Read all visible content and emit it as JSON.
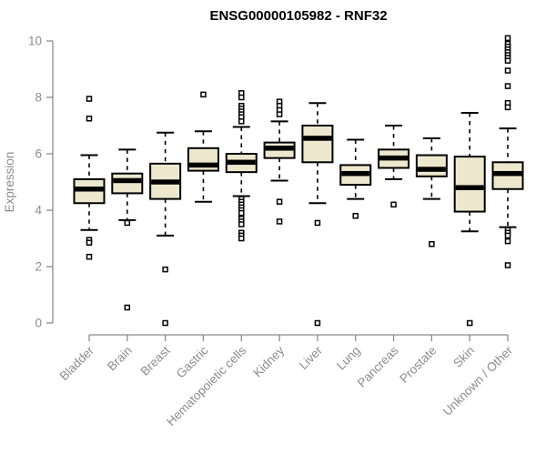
{
  "chart_data": {
    "type": "boxplot",
    "title": "ENSG00000105982 - RNF32",
    "ylabel": "Expression",
    "xlabel": "",
    "ylim": [
      0,
      10
    ],
    "yticks": [
      0,
      2,
      4,
      6,
      8,
      10
    ],
    "grid": false,
    "legend": false,
    "categories": [
      "Bladder",
      "Brain",
      "Breast",
      "Gastric",
      "Hematopoietic cells",
      "Kidney",
      "Liver",
      "Lung",
      "Pancreas",
      "Prostate",
      "Skin",
      "Unknown / Other"
    ],
    "series": [
      {
        "category": "Bladder",
        "whisker_low": 3.3,
        "q1": 4.25,
        "median": 4.75,
        "q3": 5.1,
        "whisker_high": 5.95,
        "outliers": [
          7.95,
          7.25,
          2.95,
          2.85,
          2.35
        ]
      },
      {
        "category": "Brain",
        "whisker_low": 3.65,
        "q1": 4.6,
        "median": 5.05,
        "q3": 5.3,
        "whisker_high": 6.15,
        "outliers": [
          3.55,
          0.55
        ]
      },
      {
        "category": "Breast",
        "whisker_low": 3.1,
        "q1": 4.4,
        "median": 5.0,
        "q3": 5.65,
        "whisker_high": 6.75,
        "outliers": [
          1.9,
          0.0
        ]
      },
      {
        "category": "Gastric",
        "whisker_low": 4.3,
        "q1": 5.4,
        "median": 5.6,
        "q3": 6.2,
        "whisker_high": 6.8,
        "outliers": [
          8.1
        ]
      },
      {
        "category": "Hematopoietic cells",
        "whisker_low": 4.5,
        "q1": 5.35,
        "median": 5.7,
        "q3": 6.0,
        "whisker_high": 6.95,
        "outliers": [
          8.15,
          8.0,
          7.7,
          7.6,
          7.5,
          7.4,
          7.3,
          7.15,
          4.4,
          4.3,
          4.2,
          4.1,
          4.0,
          3.9,
          3.7,
          3.6,
          3.5,
          3.2,
          3.1,
          3.0
        ]
      },
      {
        "category": "Kidney",
        "whisker_low": 5.05,
        "q1": 5.85,
        "median": 6.2,
        "q3": 6.4,
        "whisker_high": 7.15,
        "outliers": [
          7.85,
          7.7,
          7.55,
          7.4,
          4.3,
          3.6
        ]
      },
      {
        "category": "Liver",
        "whisker_low": 4.25,
        "q1": 5.7,
        "median": 6.55,
        "q3": 7.0,
        "whisker_high": 7.8,
        "outliers": [
          3.55,
          0.0
        ]
      },
      {
        "category": "Lung",
        "whisker_low": 4.4,
        "q1": 4.9,
        "median": 5.3,
        "q3": 5.6,
        "whisker_high": 6.5,
        "outliers": [
          3.8
        ]
      },
      {
        "category": "Pancreas",
        "whisker_low": 5.1,
        "q1": 5.5,
        "median": 5.85,
        "q3": 6.15,
        "whisker_high": 7.0,
        "outliers": [
          4.2
        ]
      },
      {
        "category": "Prostate",
        "whisker_low": 4.4,
        "q1": 5.2,
        "median": 5.45,
        "q3": 5.95,
        "whisker_high": 6.55,
        "outliers": [
          2.8
        ]
      },
      {
        "category": "Skin",
        "whisker_low": 3.25,
        "q1": 3.95,
        "median": 4.8,
        "q3": 5.9,
        "whisker_high": 7.45,
        "outliers": [
          0.0
        ]
      },
      {
        "category": "Unknown / Other",
        "whisker_low": 3.4,
        "q1": 4.75,
        "median": 5.3,
        "q3": 5.7,
        "whisker_high": 6.9,
        "outliers": [
          10.1,
          9.9,
          9.8,
          9.7,
          9.6,
          9.5,
          9.4,
          9.3,
          8.95,
          8.4,
          7.8,
          7.65,
          3.3,
          3.2,
          3.1,
          2.9,
          2.05
        ]
      }
    ],
    "colors": {
      "box_fill": "#EDE8CD",
      "box_stroke": "#000000",
      "median": "#000000",
      "outlier_fill": "#FFFFFF",
      "outlier_stroke": "#000000",
      "axis": "#8C8C8C",
      "title": "#000000",
      "background": "#FFFFFF"
    }
  }
}
